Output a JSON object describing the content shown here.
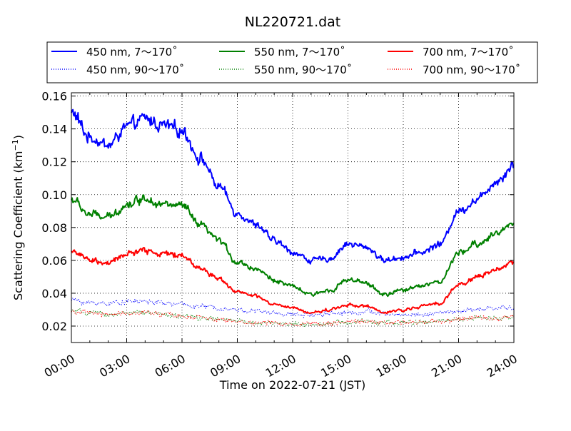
{
  "chart_data": {
    "type": "line",
    "title": "NL220721.dat",
    "xlabel": "Time on 2022-07-21 (JST)",
    "ylabel": "Scattering Coefficient (km",
    "ylabel_sup": "−1",
    "ylabel_close": ")",
    "xlim": [
      "00:00",
      "24:00"
    ],
    "ylim": [
      0.01,
      0.162
    ],
    "grid": true,
    "legend_position": "top",
    "x_ticks": [
      "00:00",
      "03:00",
      "06:00",
      "09:00",
      "12:00",
      "15:00",
      "18:00",
      "21:00",
      "24:00"
    ],
    "y_ticks": [
      "0.02",
      "0.04",
      "0.06",
      "0.08",
      "0.10",
      "0.12",
      "0.14",
      "0.16"
    ],
    "x_hours": [
      0,
      1,
      2,
      3,
      4,
      5,
      6,
      7,
      8,
      9,
      10,
      11,
      12,
      13,
      14,
      15,
      16,
      17,
      18,
      19,
      20,
      21,
      22,
      23,
      24
    ],
    "series": [
      {
        "name": "450 nm, 7～170˚",
        "color": "#0000ff",
        "style": "solid",
        "values": [
          0.15,
          0.135,
          0.13,
          0.141,
          0.146,
          0.142,
          0.139,
          0.122,
          0.105,
          0.089,
          0.082,
          0.072,
          0.065,
          0.06,
          0.061,
          0.07,
          0.068,
          0.06,
          0.062,
          0.065,
          0.07,
          0.09,
          0.097,
          0.108,
          0.118
        ]
      },
      {
        "name": "450 nm, 90～170˚",
        "color": "#0000ff",
        "style": "dotted",
        "values": [
          0.036,
          0.034,
          0.034,
          0.035,
          0.035,
          0.034,
          0.033,
          0.032,
          0.031,
          0.03,
          0.029,
          0.028,
          0.027,
          0.027,
          0.028,
          0.028,
          0.029,
          0.027,
          0.027,
          0.027,
          0.028,
          0.029,
          0.03,
          0.031,
          0.031
        ]
      },
      {
        "name": "550 nm, 7～170˚",
        "color": "#008000",
        "style": "solid",
        "values": [
          0.097,
          0.088,
          0.086,
          0.094,
          0.098,
          0.094,
          0.093,
          0.081,
          0.072,
          0.059,
          0.055,
          0.048,
          0.044,
          0.039,
          0.042,
          0.048,
          0.046,
          0.039,
          0.042,
          0.045,
          0.047,
          0.064,
          0.07,
          0.076,
          0.083
        ]
      },
      {
        "name": "550 nm, 90～170˚",
        "color": "#008000",
        "style": "dotted",
        "values": [
          0.029,
          0.028,
          0.027,
          0.028,
          0.028,
          0.027,
          0.026,
          0.025,
          0.024,
          0.023,
          0.022,
          0.022,
          0.021,
          0.021,
          0.022,
          0.022,
          0.023,
          0.022,
          0.022,
          0.022,
          0.023,
          0.024,
          0.025,
          0.025,
          0.026
        ]
      },
      {
        "name": "700 nm, 7～170˚",
        "color": "#ff0000",
        "style": "solid",
        "values": [
          0.066,
          0.06,
          0.058,
          0.064,
          0.066,
          0.064,
          0.063,
          0.055,
          0.049,
          0.041,
          0.038,
          0.033,
          0.031,
          0.028,
          0.03,
          0.033,
          0.032,
          0.028,
          0.03,
          0.032,
          0.034,
          0.045,
          0.05,
          0.054,
          0.059
        ]
      },
      {
        "name": "700 nm, 90～170˚",
        "color": "#ff0000",
        "style": "dotted",
        "values": [
          0.029,
          0.028,
          0.027,
          0.028,
          0.028,
          0.027,
          0.026,
          0.025,
          0.024,
          0.023,
          0.022,
          0.022,
          0.021,
          0.022,
          0.022,
          0.022,
          0.023,
          0.022,
          0.022,
          0.023,
          0.023,
          0.024,
          0.025,
          0.025,
          0.026
        ]
      }
    ]
  }
}
